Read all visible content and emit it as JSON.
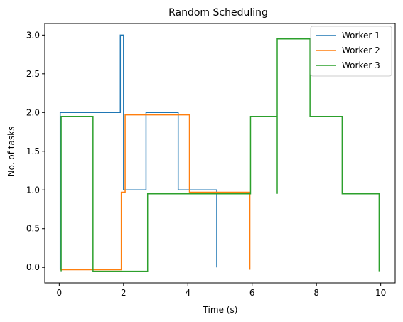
{
  "chart_data": {
    "type": "line",
    "step": true,
    "title": "Random Scheduling",
    "xlabel": "Time (s)",
    "ylabel": "No. of tasks",
    "xlim": [
      -0.45,
      10.45
    ],
    "ylim": [
      -0.2,
      3.15
    ],
    "xticks": [
      0,
      2,
      4,
      6,
      8,
      10
    ],
    "yticks": [
      0.0,
      0.5,
      1.0,
      1.5,
      2.0,
      2.5,
      3.0
    ],
    "xtick_labels": [
      "0",
      "2",
      "4",
      "6",
      "8",
      "10"
    ],
    "ytick_labels": [
      "0.0",
      "0.5",
      "1.0",
      "1.5",
      "2.0",
      "2.5",
      "3.0"
    ],
    "legend_position": "top-right",
    "series": [
      {
        "name": "Worker 1",
        "color": "#1f77b4",
        "points": [
          [
            0.03,
            -0.03
          ],
          [
            0.03,
            2.0
          ],
          [
            1.9,
            2.0
          ],
          [
            1.9,
            3.0
          ],
          [
            2.0,
            3.0
          ],
          [
            2.0,
            1.0
          ],
          [
            2.7,
            1.0
          ],
          [
            2.7,
            2.0
          ],
          [
            3.7,
            2.0
          ],
          [
            3.7,
            1.0
          ],
          [
            4.9,
            1.0
          ],
          [
            4.9,
            0.0
          ]
        ]
      },
      {
        "name": "Worker 2",
        "color": "#ff7f0e",
        "points": [
          [
            0.03,
            -0.03
          ],
          [
            1.93,
            -0.03
          ],
          [
            1.93,
            0.97
          ],
          [
            2.05,
            0.97
          ],
          [
            2.05,
            1.97
          ],
          [
            4.05,
            1.97
          ],
          [
            4.05,
            0.97
          ],
          [
            5.93,
            0.97
          ],
          [
            5.93,
            -0.03
          ]
        ]
      },
      {
        "name": "Worker 3",
        "color": "#2ca02c",
        "points": [
          [
            0.06,
            -0.05
          ],
          [
            0.06,
            1.95
          ],
          [
            1.05,
            1.95
          ],
          [
            1.05,
            -0.05
          ],
          [
            2.75,
            -0.05
          ],
          [
            2.75,
            0.95
          ],
          [
            5.95,
            0.95
          ],
          [
            5.95,
            1.95
          ],
          [
            6.78,
            1.95
          ],
          [
            6.78,
            0.95
          ],
          [
            6.78,
            2.95
          ],
          [
            7.8,
            2.95
          ],
          [
            7.8,
            1.95
          ],
          [
            8.8,
            1.95
          ],
          [
            8.8,
            0.95
          ],
          [
            9.95,
            0.95
          ],
          [
            9.95,
            -0.05
          ]
        ]
      }
    ]
  }
}
